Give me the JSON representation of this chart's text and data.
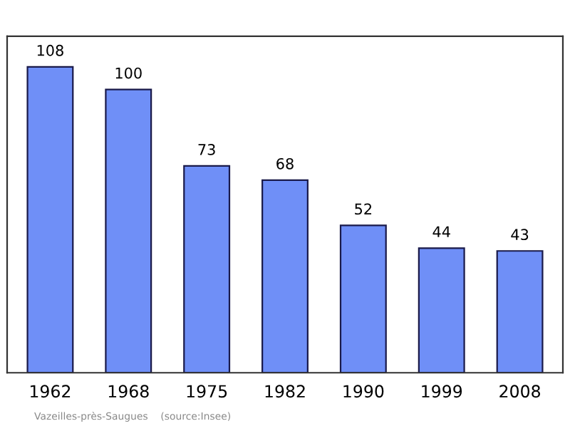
{
  "chart_data": {
    "type": "bar",
    "categories": [
      "1962",
      "1968",
      "1975",
      "1982",
      "1990",
      "1999",
      "2008"
    ],
    "values": [
      108,
      100,
      73,
      68,
      52,
      44,
      43
    ],
    "color": "#6f8ff7",
    "data_labels": true,
    "grid": false,
    "annotations": [
      "Vazeilles-près-Saugues    (source:Insee)"
    ]
  }
}
